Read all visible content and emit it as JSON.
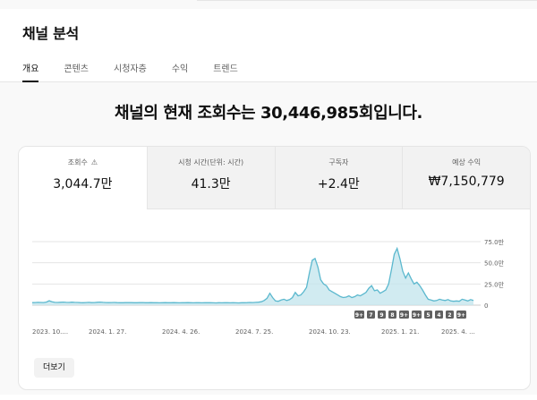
{
  "page": {
    "title": "채널 분석",
    "tabs": [
      {
        "label": "개요",
        "active": true
      },
      {
        "label": "콘텐츠",
        "active": false
      },
      {
        "label": "시청자층",
        "active": false
      },
      {
        "label": "수익",
        "active": false
      },
      {
        "label": "트렌드",
        "active": false
      }
    ]
  },
  "headline": {
    "prefix": "채널의 현재 조회수는 ",
    "value": "30,446,985",
    "suffix": "회입니다."
  },
  "metrics": [
    {
      "label": "조회수",
      "value": "3,044.7만",
      "active": true,
      "warning_icon": "warning-icon"
    },
    {
      "label": "시청 시간(단위: 시간)",
      "value": "41.3만",
      "active": false
    },
    {
      "label": "구독자",
      "value": "+2.4만",
      "active": false
    },
    {
      "label": "예상 수익",
      "value": "₩7,150,779",
      "active": false
    }
  ],
  "chart_data": {
    "type": "area",
    "x_tick_labels": [
      "2023. 10....",
      "2024. 1. 27.",
      "2024. 4. 26.",
      "2024. 7. 25.",
      "2024. 10. 23.",
      "2025. 1. 21.",
      "2025. 4. ..."
    ],
    "y_tick_labels": [
      "75.0만",
      "50.0만",
      "25.0만",
      "0"
    ],
    "ylim": [
      0,
      750000
    ],
    "color": "#5bb8ce",
    "fill_color": "#c5e6ee",
    "values": [
      30000,
      31000,
      33000,
      32000,
      31000,
      36000,
      52000,
      40000,
      33000,
      32000,
      34000,
      36000,
      33000,
      32000,
      35000,
      33000,
      32000,
      30000,
      29000,
      31000,
      33000,
      30000,
      31000,
      34000,
      36000,
      33000,
      31000,
      30000,
      31000,
      32000,
      30000,
      29000,
      28000,
      30000,
      31000,
      30000,
      28000,
      29000,
      30000,
      31000,
      29000,
      28000,
      30000,
      29000,
      28000,
      27000,
      29000,
      30000,
      28000,
      29000,
      30000,
      28000,
      27000,
      28000,
      29000,
      30000,
      28000,
      27000,
      29000,
      28000,
      27000,
      28000,
      29000,
      28000,
      27000,
      26000,
      28000,
      27000,
      29000,
      28000,
      27000,
      28000,
      27000,
      26000,
      28000,
      29000,
      30000,
      32000,
      31000,
      33000,
      35000,
      40000,
      55000,
      80000,
      140000,
      90000,
      50000,
      45000,
      60000,
      70000,
      55000,
      65000,
      90000,
      150000,
      110000,
      120000,
      160000,
      210000,
      380000,
      530000,
      550000,
      450000,
      300000,
      250000,
      230000,
      180000,
      160000,
      140000,
      120000,
      100000,
      90000,
      95000,
      110000,
      90000,
      100000,
      120000,
      110000,
      130000,
      150000,
      200000,
      230000,
      170000,
      180000,
      140000,
      160000,
      180000,
      250000,
      420000,
      600000,
      670000,
      550000,
      400000,
      320000,
      380000,
      310000,
      250000,
      270000,
      230000,
      180000,
      120000,
      70000,
      60000,
      50000,
      55000,
      70000,
      60000,
      55000,
      65000,
      50000,
      45000,
      50000,
      45000,
      70000,
      60000,
      50000,
      65000,
      55000
    ],
    "annotation_markers": [
      "9+",
      "7",
      "9",
      "8",
      "9+",
      "9+",
      "5",
      "4",
      "2",
      "9+"
    ]
  },
  "more_button": {
    "label": "더보기"
  }
}
